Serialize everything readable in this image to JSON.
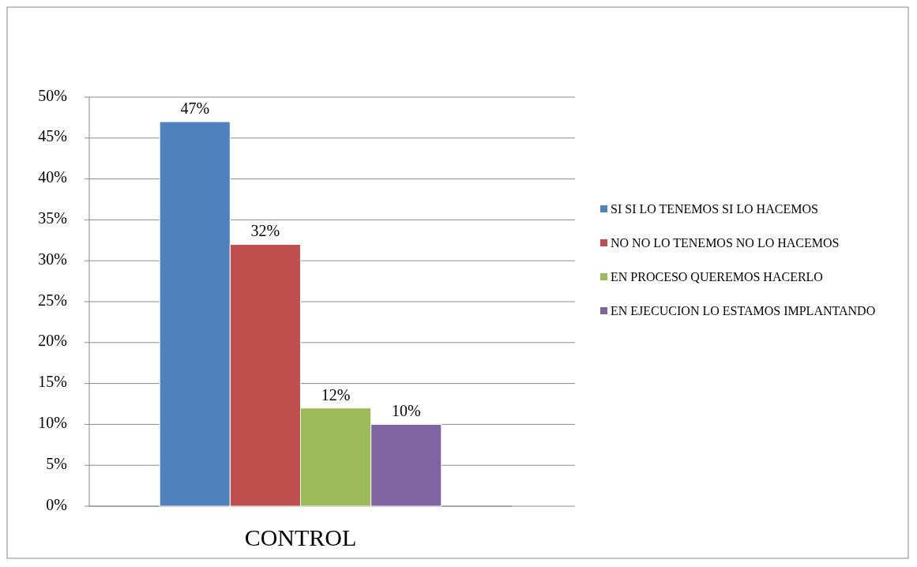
{
  "chart_data": {
    "type": "bar",
    "categories": [
      "CONTROL"
    ],
    "series": [
      {
        "name": "SI SI LO TENEMOS SI LO HACEMOS",
        "color": "#4f81bd",
        "values": [
          47
        ],
        "value_labels": [
          "47%"
        ]
      },
      {
        "name": "NO NO LO TENEMOS NO LO HACEMOS",
        "color": "#c0504d",
        "values": [
          32
        ],
        "value_labels": [
          "32%"
        ]
      },
      {
        "name": "EN PROCESO QUEREMOS HACERLO",
        "color": "#9bbb59",
        "values": [
          12
        ],
        "value_labels": [
          "12%"
        ]
      },
      {
        "name": "EN EJECUCION LO ESTAMOS IMPLANTANDO",
        "color": "#8064a2",
        "values": [
          10
        ],
        "value_labels": [
          "10%"
        ]
      }
    ],
    "ylim": [
      0,
      50
    ],
    "yticks": [
      {
        "value": 0,
        "label": "0%"
      },
      {
        "value": 5,
        "label": "5%"
      },
      {
        "value": 10,
        "label": "10%"
      },
      {
        "value": 15,
        "label": "15%"
      },
      {
        "value": 20,
        "label": "20%"
      },
      {
        "value": 25,
        "label": "25%"
      },
      {
        "value": 30,
        "label": "30%"
      },
      {
        "value": 35,
        "label": "35%"
      },
      {
        "value": 40,
        "label": "40%"
      },
      {
        "value": 45,
        "label": "45%"
      },
      {
        "value": 50,
        "label": "50%"
      }
    ],
    "grid": "y",
    "legend": "right"
  }
}
